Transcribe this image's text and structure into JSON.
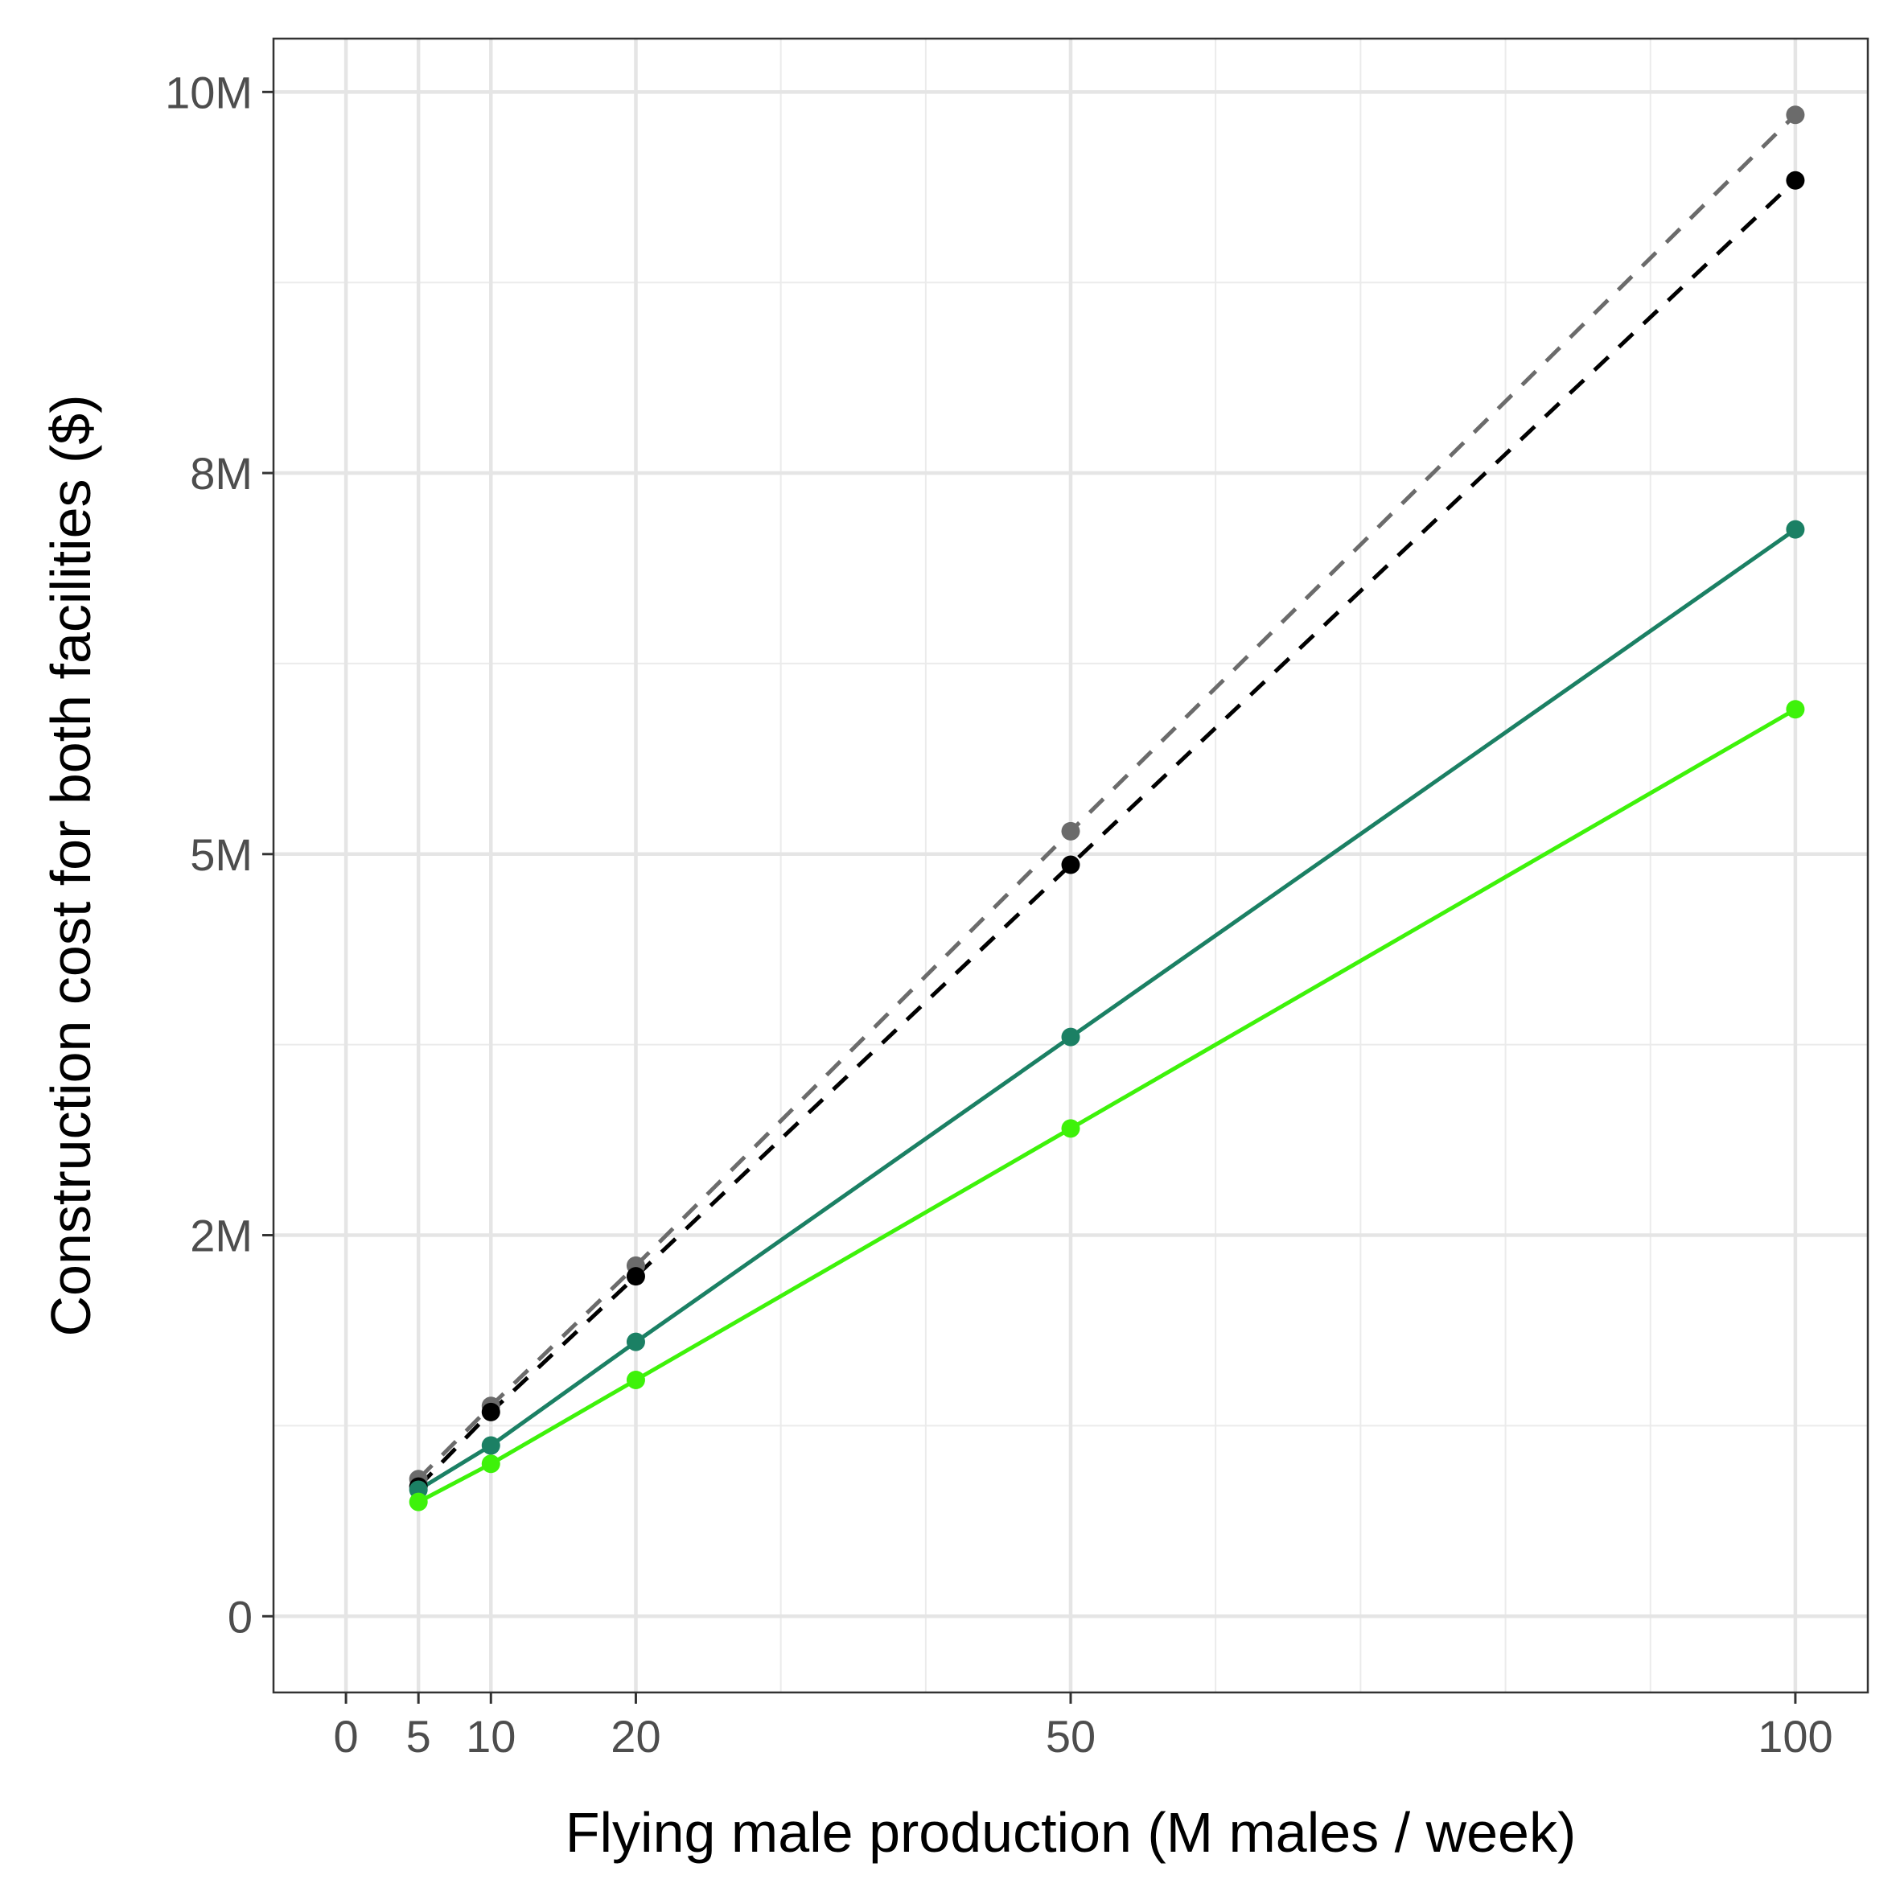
{
  "chart_data": {
    "type": "line",
    "title": "",
    "xlabel": "Flying male production (M males / week)",
    "ylabel": "Construction cost for both facilities ($)",
    "xlim": [
      -5,
      105
    ],
    "ylim": [
      -0.5,
      10.35
    ],
    "x_ticks": [
      0,
      5,
      10,
      20,
      50,
      100
    ],
    "x_tick_labels": [
      "0",
      "5",
      "10",
      "20",
      "50",
      "100"
    ],
    "x_minor_grid": [
      30,
      40,
      60,
      70,
      80,
      90
    ],
    "y_ticks": [
      0,
      2.5,
      5,
      7.5,
      10
    ],
    "y_tick_labels": [
      "0",
      "2M",
      "5M",
      "8M",
      "10M"
    ],
    "y_minor_grid": [
      1.25,
      3.75,
      6.25,
      8.75
    ],
    "grid": true,
    "legend": "none",
    "x": [
      5,
      10,
      20,
      50,
      100
    ],
    "series": [
      {
        "color": "#6b6b6b",
        "dash": true,
        "values": [
          0.9,
          1.38,
          2.3,
          5.15,
          9.85
        ]
      },
      {
        "color": "#000000",
        "dash": true,
        "values": [
          0.85,
          1.34,
          2.23,
          4.93,
          9.42
        ]
      },
      {
        "color": "#1b8064",
        "dash": false,
        "values": [
          0.83,
          1.12,
          1.8,
          3.8,
          7.13
        ]
      },
      {
        "color": "#3ef20a",
        "dash": false,
        "values": [
          0.75,
          1.0,
          1.55,
          3.2,
          5.95
        ]
      }
    ]
  }
}
